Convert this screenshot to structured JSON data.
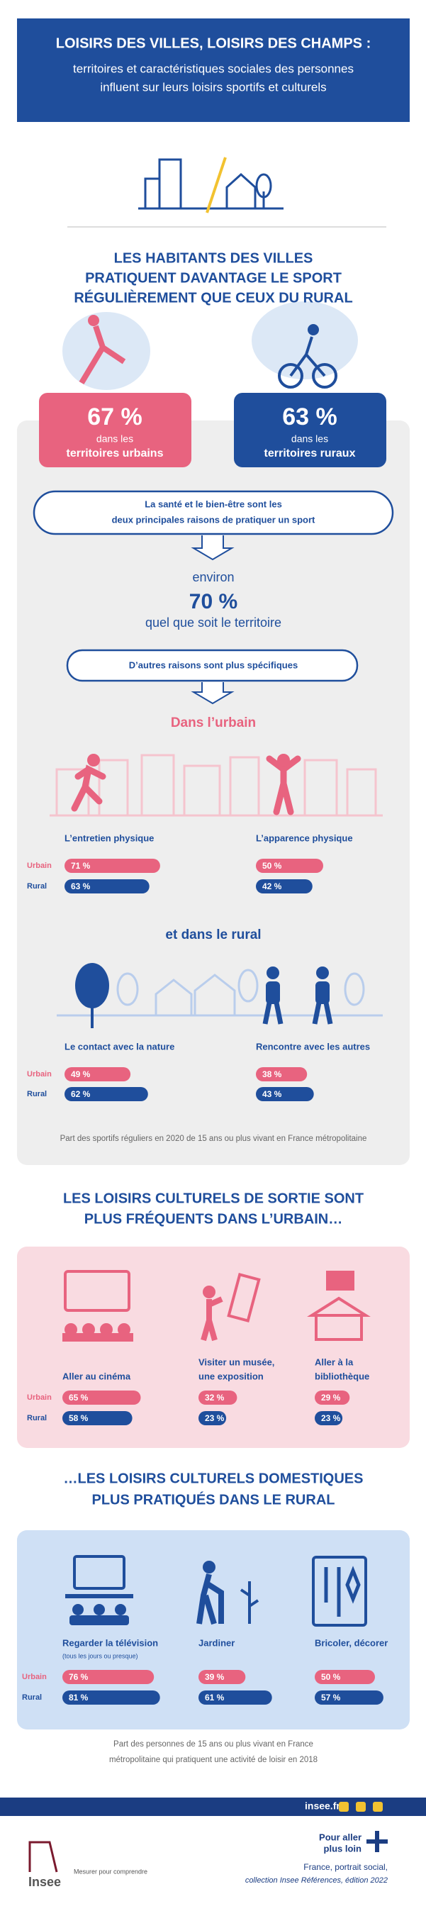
{
  "header": {
    "title": "LOISIRS DES VILLES, LOISIRS DES CHAMPS :",
    "subtitle": [
      "territoires et caractéristiques sociales des personnes",
      "influent sur leurs loisirs sportifs et culturels"
    ]
  },
  "sport": {
    "heading": [
      "LES HABITANTS DES VILLES",
      "PRATIQUENT DAVANTAGE LE SPORT",
      "RÉGULIÈREMENT QUE CEUX DU RURAL"
    ],
    "urban": {
      "value": 67,
      "value_label": "67 %",
      "lines": [
        "dans les",
        "territoires urbains"
      ]
    },
    "rural": {
      "value": 63,
      "value_label": "63 %",
      "lines": [
        "dans les",
        "territoires ruraux"
      ]
    },
    "reasons_box": [
      "La santé et le bien-être sont les",
      "deux principales raisons de pratiquer un sport"
    ],
    "about": "environ",
    "common": {
      "value": 70,
      "value_label": "70 %"
    },
    "common_note": "quel que soit le territoire",
    "other_box": "D’autres raisons sont plus spécifiques",
    "urban_heading": "Dans l’urbain",
    "rural_heading": "et dans le rural",
    "row_labels": [
      "Urbain",
      "Rural"
    ],
    "groups": [
      {
        "label": [
          "L’entretien physique"
        ],
        "values": [
          71,
          63
        ],
        "value_labels": [
          "71 %",
          "63 %"
        ]
      },
      {
        "label": [
          "L’apparence physique"
        ],
        "values": [
          50,
          42
        ],
        "value_labels": [
          "50 %",
          "42 %"
        ]
      },
      {
        "label": [
          "Le contact avec la nature"
        ],
        "values": [
          49,
          62
        ],
        "value_labels": [
          "49 %",
          "62 %"
        ]
      },
      {
        "label": [
          "Rencontre avec les autres"
        ],
        "values": [
          38,
          43
        ],
        "value_labels": [
          "38 %",
          "43 %"
        ]
      }
    ],
    "note": "Part des sportifs réguliers en 2020 de 15 ans ou plus vivant en France métropolitaine"
  },
  "culture_out": {
    "heading": [
      "LES LOISIRS CULTURELS DE SORTIE SONT",
      "PLUS FRÉQUENTS DANS L’URBAIN…"
    ],
    "row_labels": [
      "Urbain",
      "Rural"
    ],
    "groups": [
      {
        "label": [
          "Aller au cinéma"
        ],
        "values": [
          65,
          58
        ],
        "value_labels": [
          "65 %",
          "58 %"
        ]
      },
      {
        "label": [
          "Visiter un musée,",
          "une exposition"
        ],
        "values": [
          32,
          23
        ],
        "value_labels": [
          "32 %",
          "23 %"
        ]
      },
      {
        "label": [
          "Aller à la",
          "bibliothèque"
        ],
        "values": [
          29,
          23
        ],
        "value_labels": [
          "29 %",
          "23 %"
        ]
      }
    ]
  },
  "culture_home": {
    "heading": [
      "…LES LOISIRS CULTURELS DOMESTIQUES",
      "PLUS PRATIQUÉS DANS LE RURAL"
    ],
    "row_labels": [
      "Urbain",
      "Rural"
    ],
    "groups": [
      {
        "label": [
          "Regarder la télévision"
        ],
        "sublabel": "(tous les jours ou presque)",
        "values": [
          76,
          81
        ],
        "value_labels": [
          "76 %",
          "81 %"
        ]
      },
      {
        "label": [
          "Jardiner"
        ],
        "values": [
          39,
          61
        ],
        "value_labels": [
          "39 %",
          "61 %"
        ]
      },
      {
        "label": [
          "Bricoler, décorer"
        ],
        "values": [
          50,
          57
        ],
        "value_labels": [
          "50 %",
          "57 %"
        ]
      }
    ],
    "note": [
      "Part des personnes de 15 ans ou plus vivant en France",
      "métropolitaine qui pratiquent une activité de loisir en 2018"
    ]
  },
  "footer": {
    "site": "insee.fr",
    "brand": "Insee",
    "tagline": "Mesurer pour comprendre",
    "more": [
      "Pour aller",
      "plus loin"
    ],
    "reference": [
      "France, portrait social,",
      "collection Insee Références, édition 2022"
    ]
  }
}
